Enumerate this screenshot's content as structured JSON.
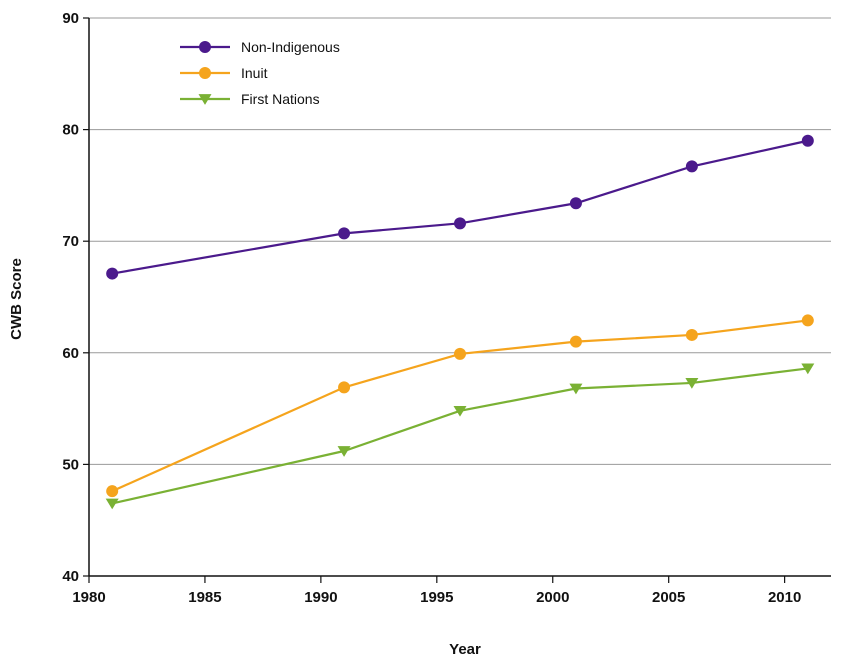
{
  "chart_data": {
    "type": "line",
    "title": "",
    "xlabel": "Year",
    "ylabel": "CWB Score",
    "xlim": [
      1980,
      2012
    ],
    "ylim": [
      40,
      90
    ],
    "x_ticks": [
      1980,
      1985,
      1990,
      1995,
      2000,
      2005,
      2010
    ],
    "y_ticks": [
      40,
      50,
      60,
      70,
      80,
      90
    ],
    "grid": "horizontal",
    "legend_position": "top-left",
    "x": [
      1981,
      1991,
      1996,
      2001,
      2006,
      2011
    ],
    "series": [
      {
        "name": "Non-Indigenous",
        "color": "#4b1a8c",
        "marker": "circle",
        "values": [
          67.1,
          70.7,
          71.6,
          73.4,
          76.7,
          79.0
        ]
      },
      {
        "name": "Inuit",
        "color": "#f5a41d",
        "marker": "circle",
        "values": [
          47.6,
          56.9,
          59.9,
          61.0,
          61.6,
          62.9
        ]
      },
      {
        "name": "First Nations",
        "color": "#7ab134",
        "marker": "triangle-down",
        "values": [
          46.5,
          51.2,
          54.8,
          56.8,
          57.3,
          58.6
        ]
      }
    ]
  }
}
